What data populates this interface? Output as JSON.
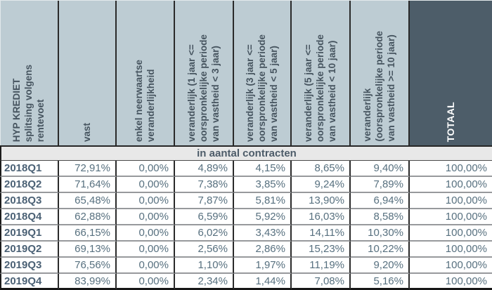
{
  "chart_data": {
    "type": "table",
    "title": "HYP KREDIET splitsing volgens rentevoet",
    "unit_banner": "in aantal contracten",
    "columns": [
      "HYP KREDIET\nsplitsing volgens\nrentevoet",
      "vast",
      "enkel neerwaartse\nveranderlijkheid",
      "veranderlijk (1 jaar <=\noorspronkelijke periode\nvan vastheid < 3 jaar)",
      "veranderlijk (3 jaar <=\noorspronkelijke periode\nvan vastheid < 5 jaar)",
      "veranderlijk (5 jaar <=\noorspronkelijke periode\nvan vastheid < 10 jaar)",
      "veranderlijk\n(oorspronkelijke periode\nvan vastheid >= 10 jaar)",
      "TOTAAL"
    ],
    "rows": [
      {
        "label": "2018Q1",
        "values": [
          "72,91%",
          "0,00%",
          "4,89%",
          "4,15%",
          "8,65%",
          "9,40%",
          "100,00%"
        ]
      },
      {
        "label": "2018Q2",
        "values": [
          "71,64%",
          "0,00%",
          "7,38%",
          "3,85%",
          "9,24%",
          "7,89%",
          "100,00%"
        ]
      },
      {
        "label": "2018Q3",
        "values": [
          "65,48%",
          "0,00%",
          "7,87%",
          "5,81%",
          "13,90%",
          "6,94%",
          "100,00%"
        ]
      },
      {
        "label": "2018Q4",
        "values": [
          "62,88%",
          "0,00%",
          "6,59%",
          "5,92%",
          "16,03%",
          "8,58%",
          "100,00%"
        ]
      },
      {
        "label": "2019Q1",
        "values": [
          "66,15%",
          "0,00%",
          "6,02%",
          "3,43%",
          "14,11%",
          "10,30%",
          "100,00%"
        ]
      },
      {
        "label": "2019Q2",
        "values": [
          "69,13%",
          "0,00%",
          "2,56%",
          "2,86%",
          "15,23%",
          "10,22%",
          "100,00%"
        ]
      },
      {
        "label": "2019Q3",
        "values": [
          "76,56%",
          "0,00%",
          "1,10%",
          "1,97%",
          "11,19%",
          "9,20%",
          "100,00%"
        ]
      },
      {
        "label": "2019Q4",
        "values": [
          "83,99%",
          "0,00%",
          "2,34%",
          "1,44%",
          "7,08%",
          "5,16%",
          "100,00%"
        ]
      }
    ]
  },
  "colors": {
    "header_bg": "#bdccd3",
    "header_text": "#46545f",
    "totaal_bg": "#4d5d69",
    "totaal_text": "#ffffff",
    "banner_bg": "#e8e8e8",
    "value_text": "#57707f",
    "row_label_text": "#4b6175",
    "grid_dark": "#2a2a2a",
    "row_separator": "#97999c"
  }
}
